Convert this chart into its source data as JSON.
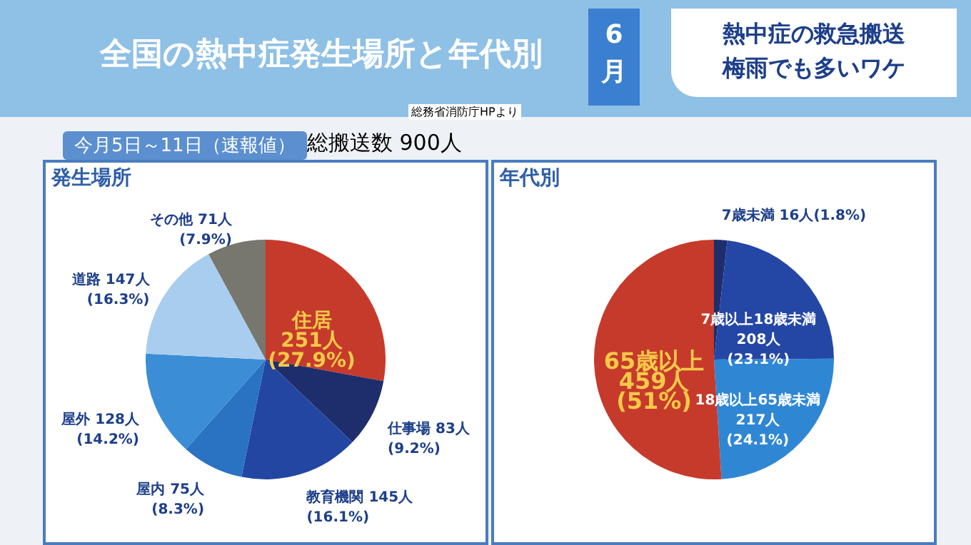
{
  "chart_data": [
    {
      "type": "pie",
      "title": "全国の熱中症発生場所と年代別",
      "subtitle": "発生場所",
      "annotations": [
        "総務省消防庁HPより",
        "今月5日～11日（速報値）",
        "総搬送数 900人",
        "6月",
        "熱中症の救急搬送梅雨でも多いワケ"
      ],
      "categories": [
        "住居",
        "仕事場",
        "教育機関",
        "屋内",
        "屋外",
        "道路",
        "その他"
      ],
      "values": [
        251,
        83,
        145,
        75,
        128,
        147,
        71
      ],
      "colors": [
        "#c63a2c",
        "#1e2d6b",
        "#2346a2",
        "#2a72c2",
        "#3b8dd5",
        "#a9cdee",
        "#77766f"
      ],
      "value_labels": [
        "251人\n(27.9%)",
        "83人\n(9.2%)",
        "145人\n(16.1%)",
        "75人\n(8.3%)",
        "128人\n(14.2%)",
        "147人\n(16.3%)",
        "71人\n(7.9%)"
      ]
    },
    {
      "type": "pie",
      "subtitle": "年代別",
      "categories": [
        "7歳未満",
        "7歳以上18歳未満",
        "18歳以上65歳未満",
        "65歳以上"
      ],
      "values": [
        16,
        208,
        217,
        459
      ],
      "colors": [
        "#1e2d6b",
        "#2447a6",
        "#2f87d4",
        "#c63a2c"
      ],
      "value_labels": [
        "16人(1.8%)",
        "208人\n(23.1%)",
        "217人\n(24.1%)",
        "459人\n(51%)"
      ]
    }
  ]
}
